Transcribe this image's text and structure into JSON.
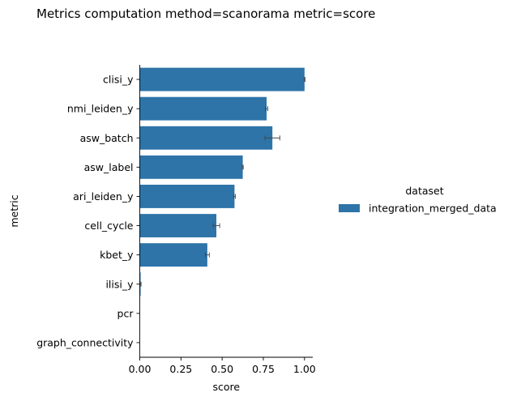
{
  "chart_data": {
    "type": "bar",
    "orientation": "horizontal",
    "title": "Metrics computation method=scanorama metric=score",
    "xlabel": "score",
    "ylabel": "metric",
    "xlim": [
      0.0,
      1.05
    ],
    "xticks": [
      "0.00",
      "0.25",
      "0.50",
      "0.75",
      "1.00"
    ],
    "xtick_values": [
      0.0,
      0.25,
      0.5,
      0.75,
      1.0
    ],
    "categories": [
      "clisi_y",
      "nmi_leiden_y",
      "asw_batch",
      "asw_label",
      "ari_leiden_y",
      "cell_cycle",
      "kbet_y",
      "ilisi_y",
      "pcr",
      "graph_connectivity"
    ],
    "series": [
      {
        "name": "integration_merged_data",
        "color": "#2e74a8",
        "values": [
          1.0,
          0.77,
          0.805,
          0.625,
          0.575,
          0.465,
          0.41,
          0.005,
          0.0,
          0.0
        ],
        "error": [
          0.003,
          0.007,
          0.045,
          0.003,
          0.005,
          0.02,
          0.012,
          0.003,
          0.0,
          0.0
        ]
      }
    ],
    "legend": {
      "title": "dataset",
      "placement": "right"
    },
    "grid": false
  }
}
